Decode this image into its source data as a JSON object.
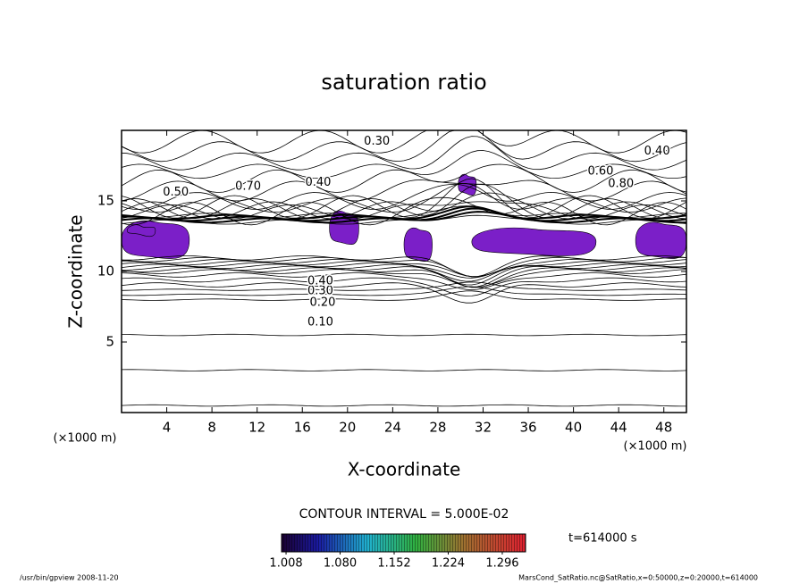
{
  "chart_data": {
    "type": "contour",
    "title": "saturation ratio",
    "x_label": "X-coordinate",
    "y_label": "Z-coordinate",
    "x_unit": "(×1000 m)",
    "y_unit": "(×1000 m)",
    "xlim": [
      0,
      50
    ],
    "xticks": [
      4,
      8,
      12,
      16,
      20,
      24,
      28,
      32,
      36,
      40,
      44,
      48
    ],
    "ylim": [
      0,
      20
    ],
    "yticks": [
      5,
      10,
      15
    ],
    "contour_interval": "CONTOUR INTERVAL = 5.000E-02",
    "time": "t=614000 s",
    "shade_color": "#7b1fc8",
    "contour_labels": [
      {
        "value": 0.1,
        "label": "0.10",
        "x": 17.6,
        "z": 6.4
      },
      {
        "value": 0.2,
        "label": "0.20",
        "x": 17.8,
        "z": 7.8
      },
      {
        "value": 0.3,
        "label": "0.30",
        "x": 17.6,
        "z": 8.6
      },
      {
        "value": 0.4,
        "label": "0.40",
        "x": 17.6,
        "z": 9.3
      },
      {
        "value": 0.3,
        "label": "0.30",
        "x": 22.6,
        "z": 19.2
      },
      {
        "value": 0.4,
        "label": "0.40",
        "x": 17.4,
        "z": 16.3
      },
      {
        "value": 0.7,
        "label": "0.70",
        "x": 11.2,
        "z": 16.0
      },
      {
        "value": 0.5,
        "label": "0.50",
        "x": 4.8,
        "z": 15.6
      },
      {
        "value": 0.6,
        "label": "0.60",
        "x": 42.4,
        "z": 17.1
      },
      {
        "value": 0.8,
        "label": "0.80",
        "x": 44.2,
        "z": 16.2
      },
      {
        "value": 0.4,
        "label": "0.40",
        "x": 47.4,
        "z": 18.5
      }
    ],
    "colorbar": {
      "lim": [
        1.002,
        1.327
      ],
      "ticks": [
        1.008,
        {
          "value": 1.08,
          "label": "1.080"
        },
        1.152,
        1.224,
        1.296
      ]
    },
    "footer_left": "/usr/bin/gpview   2008-11-20",
    "footer_right": "MarsCond_SatRatio.nc@SatRatio,x=0:50000,z=0:20000,t=614000"
  }
}
